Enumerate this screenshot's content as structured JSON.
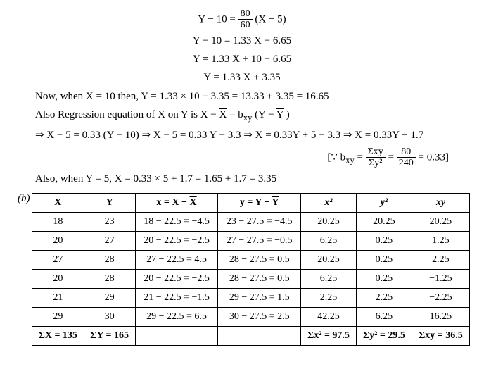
{
  "equations": {
    "e1_lhs": "Y − 10 = ",
    "e1_num": "80",
    "e1_den": "60",
    "e1_rhs": " (X − 5)",
    "e2": "Y − 10 = 1.33 X − 6.65",
    "e3": "Y = 1.33 X + 10 − 6.65",
    "e4": "Y = 1.33 X + 3.35"
  },
  "text": {
    "now_line": "Now, when X = 10 then, Y = 1.33 × 10 + 3.35 = 13.33 + 3.35 = 16.65",
    "also_reg_pre": "Also Regression equation of X on Y is X − ",
    "also_reg_xbar": "X",
    "also_reg_mid": "  = b",
    "also_reg_sub": "xy",
    "also_reg_post1": " (Y − ",
    "also_reg_ybar": "Y",
    "also_reg_post2": " )",
    "impl_line": "⇒ X − 5 = 0.33 (Y − 10) ⇒ X − 5 = 0.33 Y − 3.3 ⇒ X = 0.33Y + 5 − 3.3 ⇒ X = 0.33Y + 1.7",
    "bxy_open": "[∵ b",
    "bxy_sub": "xy",
    "bxy_eq": " = ",
    "bxy_num1": "Σxy",
    "bxy_den1": "Σy²",
    "bxy_eq2": " = ",
    "bxy_num2": "80",
    "bxy_den2": "240",
    "bxy_close": " = 0.33]",
    "also_when": "Also,  when Y = 5, X = 0.33 × 5 + 1.7 = 1.65 + 1.7 = 3.35",
    "part_label": "(b)"
  },
  "table": {
    "headers": {
      "h1": "X",
      "h2": "Y",
      "h3_pre": "x = X − ",
      "h3_bar": "X",
      "h4_pre": "y = Y − ",
      "h4_bar": "Y",
      "h5": "x²",
      "h6": "y²",
      "h7": "xy"
    },
    "rows": [
      {
        "X": "18",
        "Y": "23",
        "xcalc": "18 − 22.5 = −4.5",
        "ycalc": "23 − 27.5 = −4.5",
        "x2": "20.25",
        "y2": "20.25",
        "xy": "20.25"
      },
      {
        "X": "20",
        "Y": "27",
        "xcalc": "20 − 22.5 = −2.5",
        "ycalc": "27 − 27.5 = −0.5",
        "x2": "6.25",
        "y2": "0.25",
        "xy": "1.25"
      },
      {
        "X": "27",
        "Y": "28",
        "xcalc": "27 − 22.5 =   4.5",
        "ycalc": "28 − 27.5 =   0.5",
        "x2": "20.25",
        "y2": "0.25",
        "xy": "2.25"
      },
      {
        "X": "20",
        "Y": "28",
        "xcalc": "20 − 22.5 = −2.5",
        "ycalc": "28 − 27.5 =   0.5",
        "x2": "6.25",
        "y2": "0.25",
        "xy": "−1.25"
      },
      {
        "X": "21",
        "Y": "29",
        "xcalc": "21 − 22.5 = −1.5",
        "ycalc": "29 − 27.5 =   1.5",
        "x2": "2.25",
        "y2": "2.25",
        "xy": "−2.25"
      },
      {
        "X": "29",
        "Y": "30",
        "xcalc": "29 − 22.5 =   6.5",
        "ycalc": "30 − 27.5 =   2.5",
        "x2": "42.25",
        "y2": "6.25",
        "xy": "16.25"
      }
    ],
    "sums": {
      "sX": "ΣX = 135",
      "sY": "ΣY = 165",
      "s_blank1": "",
      "s_blank2": "",
      "sx2": "Σx² = 97.5",
      "sy2": "Σy² = 29.5",
      "sxy": "Σxy = 36.5"
    }
  }
}
